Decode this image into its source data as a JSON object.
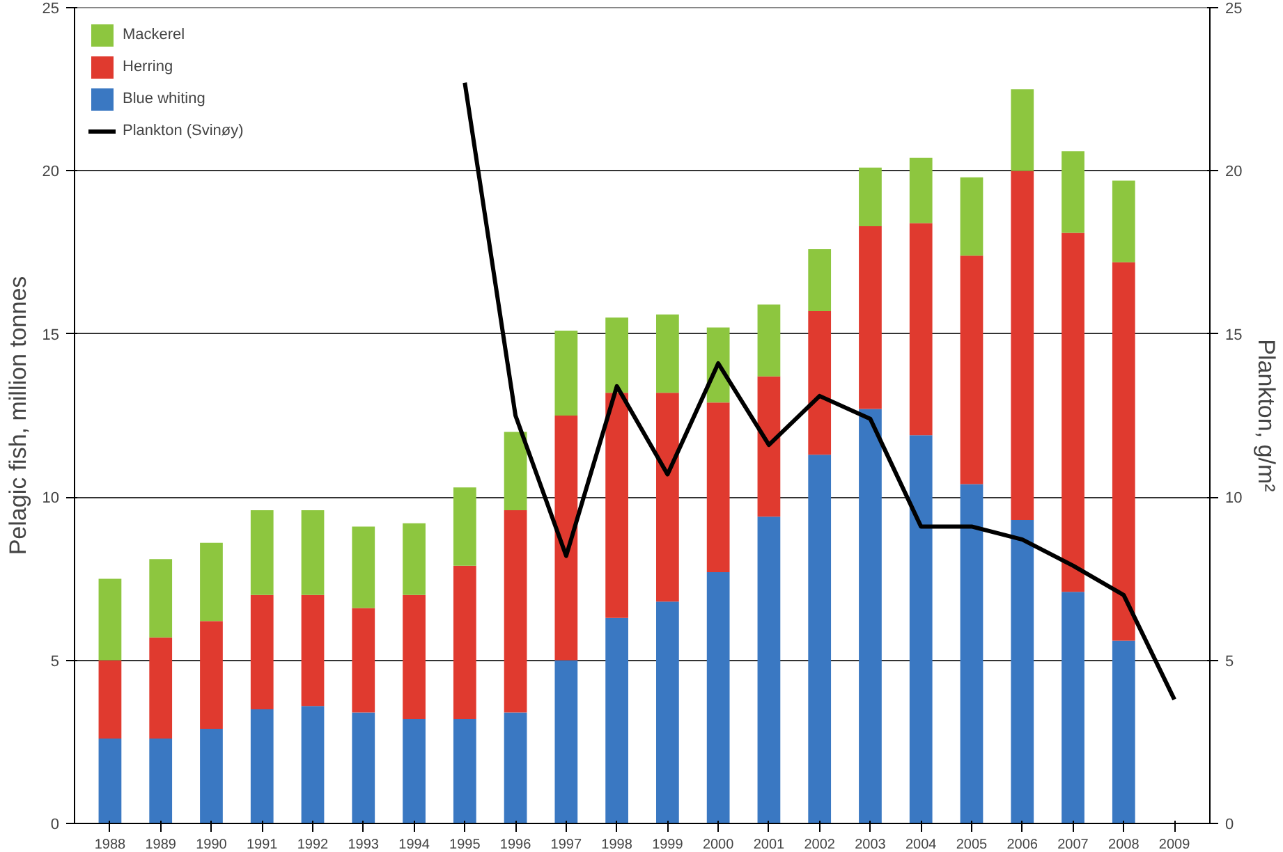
{
  "chart_data": {
    "type": "bar",
    "stacked": true,
    "ylabel": "Pelagic fish, million tonnes",
    "y2label": "Plankton, g/m²",
    "categories": [
      "1988",
      "1989",
      "1990",
      "1991",
      "1992",
      "1993",
      "1994",
      "1995",
      "1996",
      "1997",
      "1998",
      "1999",
      "2000",
      "2001",
      "2002",
      "2003",
      "2004",
      "2005",
      "2006",
      "2007",
      "2008",
      "2009"
    ],
    "series": [
      {
        "name": "Blue whiting",
        "color": "#3a78c2",
        "values": [
          2.6,
          2.6,
          2.9,
          3.5,
          3.6,
          3.4,
          3.2,
          3.2,
          3.4,
          5.0,
          6.3,
          6.8,
          7.7,
          9.4,
          11.3,
          12.7,
          11.9,
          10.4,
          9.3,
          7.1,
          5.6,
          null
        ]
      },
      {
        "name": "Herring",
        "color": "#e03a2f",
        "values": [
          2.4,
          3.1,
          3.3,
          3.5,
          3.4,
          3.2,
          3.8,
          4.7,
          6.2,
          7.5,
          6.9,
          6.4,
          5.2,
          4.3,
          4.4,
          5.6,
          6.5,
          7.0,
          10.7,
          11.0,
          11.6,
          null
        ]
      },
      {
        "name": "Mackerel",
        "color": "#8dc63f",
        "values": [
          2.5,
          2.4,
          2.4,
          2.6,
          2.6,
          2.5,
          2.2,
          2.4,
          2.4,
          2.6,
          2.3,
          2.4,
          2.3,
          2.2,
          1.9,
          1.8,
          2.0,
          2.4,
          2.5,
          2.5,
          2.5,
          null
        ]
      },
      {
        "name": "Plankton (Svinøy)",
        "type": "line",
        "axis": "y2",
        "color": "#000000",
        "values": [
          null,
          null,
          null,
          null,
          null,
          null,
          null,
          22.7,
          12.5,
          8.2,
          13.4,
          10.7,
          14.1,
          11.6,
          13.1,
          12.4,
          9.1,
          9.1,
          8.7,
          7.9,
          7.0,
          3.8
        ]
      }
    ],
    "ylim": [
      0,
      25
    ],
    "yticks": [
      0,
      5,
      10,
      15,
      20,
      25
    ],
    "y2lim": [
      0,
      25
    ],
    "y2ticks": [
      0,
      5,
      10,
      15,
      20,
      25
    ],
    "grid": "y",
    "legend": "top left"
  }
}
